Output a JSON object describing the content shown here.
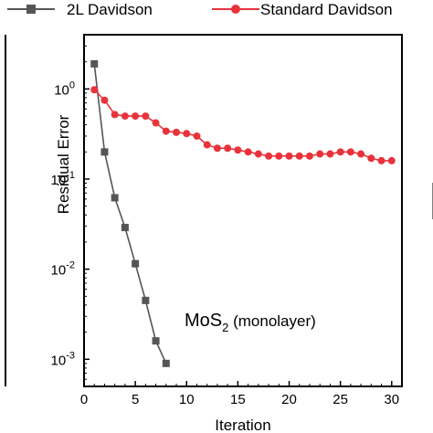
{
  "chart_data": {
    "type": "line",
    "xlabel": "Iteration",
    "ylabel": "Residual Error",
    "xlim": [
      0,
      31
    ],
    "ylim": [
      0.0005,
      4.0
    ],
    "yscale": "log",
    "x_ticks": [
      0,
      5,
      10,
      15,
      20,
      25,
      30
    ],
    "x_tick_labels": [
      "0",
      "5",
      "10",
      "15",
      "20",
      "25",
      "30"
    ],
    "y_ticks": [
      1,
      0.1,
      0.01,
      0.001
    ],
    "y_tick_labels": [
      {
        "base": "10",
        "exp": "0"
      },
      {
        "base": "10",
        "exp": "-1"
      },
      {
        "base": "10",
        "exp": "-2"
      },
      {
        "base": "10",
        "exp": "-3"
      }
    ],
    "legend_position": "top",
    "series": [
      {
        "name": "2L Davidson",
        "color": "#555555",
        "marker": "square",
        "x": [
          1,
          2,
          3,
          4,
          5,
          6,
          7,
          8
        ],
        "y": [
          1.9,
          0.2,
          0.062,
          0.029,
          0.0115,
          0.0045,
          0.0016,
          0.0009
        ]
      },
      {
        "name": "Standard Davidson",
        "color": "#e8333b",
        "marker": "circle",
        "x": [
          1,
          2,
          3,
          4,
          5,
          6,
          7,
          8,
          9,
          10,
          11,
          12,
          13,
          14,
          15,
          16,
          17,
          18,
          19,
          20,
          21,
          22,
          23,
          24,
          25,
          26,
          27,
          28,
          29,
          30
        ],
        "y": [
          0.98,
          0.75,
          0.52,
          0.5,
          0.5,
          0.5,
          0.42,
          0.34,
          0.33,
          0.32,
          0.3,
          0.24,
          0.22,
          0.22,
          0.21,
          0.2,
          0.19,
          0.18,
          0.18,
          0.18,
          0.18,
          0.18,
          0.19,
          0.19,
          0.2,
          0.2,
          0.19,
          0.17,
          0.16,
          0.16
        ]
      }
    ],
    "annotation": {
      "main": "MoS",
      "sub": "2",
      "suffix": " (monolayer)"
    }
  }
}
